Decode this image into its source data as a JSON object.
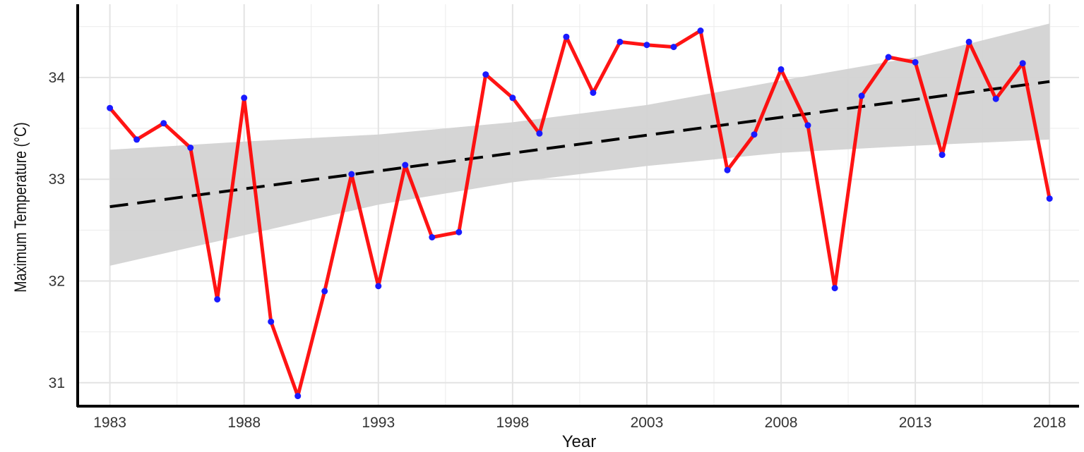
{
  "chart_data": {
    "type": "line",
    "xlabel": "Year",
    "ylabel": "Maximum Temperature (°C)",
    "xlim": [
      1981.8,
      2019.1
    ],
    "ylim": [
      30.77,
      34.72
    ],
    "x_ticks": [
      1983,
      1988,
      1993,
      1998,
      2003,
      2008,
      2013,
      2018
    ],
    "y_ticks": [
      31,
      32,
      33,
      34
    ],
    "grid": true,
    "legend": "none",
    "colors": {
      "line": "#ff0000",
      "points": "#1a1aff",
      "trend": "#000000",
      "band": "#d3d3d3",
      "grid": "#ebebeb",
      "axis": "#000000"
    },
    "series": [
      {
        "type": "line",
        "x": [
          1983,
          1984,
          1985,
          1986,
          1987,
          1988,
          1989,
          1990,
          1991,
          1992,
          1993,
          1994,
          1995,
          1996,
          1997,
          1998,
          1999,
          2000,
          2001,
          2002,
          2003,
          2004,
          2005,
          2006,
          2007,
          2008,
          2009,
          2010,
          2011,
          2012,
          2013,
          2014,
          2015,
          2016,
          2017,
          2018
        ],
        "values": [
          33.7,
          33.39,
          33.55,
          33.31,
          31.82,
          33.8,
          31.6,
          30.87,
          31.9,
          33.05,
          31.95,
          33.14,
          32.43,
          32.48,
          34.03,
          33.8,
          33.45,
          34.4,
          33.85,
          34.35,
          34.32,
          34.3,
          34.46,
          33.09,
          33.44,
          34.08,
          33.53,
          31.93,
          33.82,
          34.2,
          34.15,
          33.24,
          34.35,
          33.79,
          34.14,
          32.81
        ]
      },
      {
        "type": "line",
        "style": "dashed",
        "x": [
          1983,
          2018
        ],
        "values": [
          32.73,
          33.96
        ]
      },
      {
        "type": "area",
        "x": [
          1983,
          1988,
          1993,
          1998,
          2003,
          2008,
          2013,
          2018
        ],
        "lower": [
          32.15,
          32.45,
          32.75,
          32.97,
          33.13,
          33.26,
          33.33,
          33.39
        ],
        "upper": [
          33.29,
          33.37,
          33.44,
          33.56,
          33.73,
          33.97,
          34.2,
          34.53
        ]
      }
    ]
  }
}
